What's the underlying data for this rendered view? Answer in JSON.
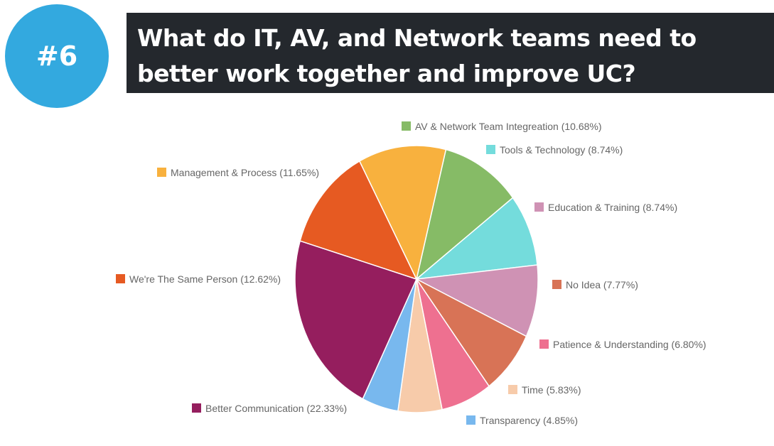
{
  "header": {
    "badge": "#6",
    "title": "What do IT, AV, and Network teams need to better work together and improve UC?"
  },
  "colors": {
    "header_bg": "#24282d",
    "badge_bg": "#33a9df"
  },
  "chart_data": {
    "type": "pie",
    "title": "What do IT, AV, and Network teams need to better work together and improve UC?",
    "unit": "%",
    "slices": [
      {
        "label": "AV & Network Team Integreation (10.68%)",
        "value": 10.68,
        "color": "#86bb66"
      },
      {
        "label": "Tools & Technology (8.74%)",
        "value": 8.74,
        "color": "#74dcdc"
      },
      {
        "label": "Education & Training (8.74%)",
        "value": 8.74,
        "color": "#cf92b4"
      },
      {
        "label": "No Idea (7.77%)",
        "value": 7.77,
        "color": "#d87356"
      },
      {
        "label": "Patience & Understanding (6.80%)",
        "value": 6.8,
        "color": "#ee7090"
      },
      {
        "label": "Time (5.83%)",
        "value": 5.83,
        "color": "#f7cbaa"
      },
      {
        "label": "Transparency (4.85%)",
        "value": 4.85,
        "color": "#78b8ee"
      },
      {
        "label": "Better Communication (22.33%)",
        "value": 22.33,
        "color": "#951e5e"
      },
      {
        "label": "We're The Same Person (12.62%)",
        "value": 12.62,
        "color": "#e65a22"
      },
      {
        "label": "Management & Process (11.65%)",
        "value": 11.65,
        "color": "#f8b13e"
      }
    ],
    "start_angle_deg": 14,
    "direction": "clockwise",
    "legend": "labels-around-pie"
  }
}
